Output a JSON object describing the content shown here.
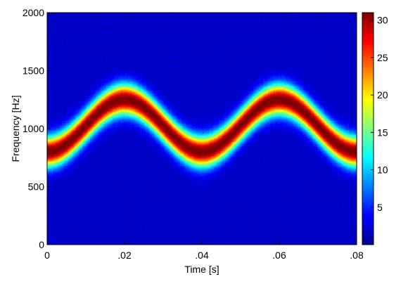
{
  "chart_data": {
    "type": "heatmap",
    "title": "",
    "xlabel": "Time [s]",
    "ylabel": "Frequency [Hz]",
    "xlim": [
      0,
      0.08
    ],
    "ylim": [
      0,
      2000
    ],
    "x_ticks": [
      0,
      0.02,
      0.04,
      0.06,
      0.08
    ],
    "x_tick_labels": [
      "0",
      ".02",
      ".04",
      ".06",
      ".08"
    ],
    "y_ticks": [
      0,
      500,
      1000,
      1500,
      2000
    ],
    "y_tick_labels": [
      "0",
      "500",
      "1000",
      "1500",
      "2000"
    ],
    "colorbar": {
      "colormap": "jet",
      "range": [
        0,
        31
      ],
      "ticks": [
        5,
        10,
        15,
        20,
        25,
        30
      ],
      "tick_labels": [
        "5",
        "10",
        "15",
        "20",
        "25",
        "30"
      ]
    },
    "ridge": {
      "description_series": "peak frequency over time (triangular sweep)",
      "time_s": [
        0,
        0.02,
        0.04,
        0.06,
        0.08
      ],
      "frequency_hz": [
        800,
        1250,
        800,
        1250,
        800
      ],
      "peak_intensity": 30,
      "bandwidth_hz": 90
    },
    "background_intensity": 2,
    "grid": false,
    "legend": "colorbar-right"
  }
}
